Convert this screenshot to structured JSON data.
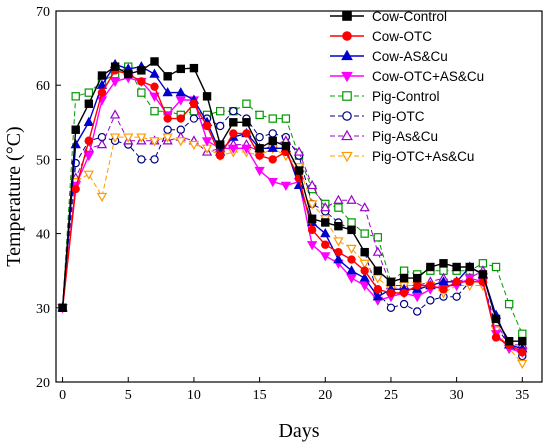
{
  "chart_data": {
    "type": "line",
    "xlabel": "Days",
    "ylabel": "Temperature (°C)",
    "xlim": [
      -0.5,
      36.5
    ],
    "ylim": [
      20,
      70
    ],
    "xticks": [
      0,
      5,
      10,
      15,
      20,
      25,
      30,
      35
    ],
    "yticks": [
      20,
      30,
      40,
      50,
      60,
      70
    ],
    "legend_position": "top-right",
    "x": [
      0,
      1,
      2,
      3,
      4,
      5,
      6,
      7,
      8,
      9,
      10,
      11,
      12,
      13,
      14,
      15,
      16,
      17,
      18,
      19,
      20,
      21,
      22,
      23,
      24,
      25,
      26,
      27,
      28,
      29,
      30,
      31,
      32,
      33,
      34,
      35
    ],
    "series": [
      {
        "name": "Cow-Control",
        "color": "#000000",
        "marker": "square",
        "filled": true,
        "dashed": false,
        "values": [
          30,
          54,
          57.5,
          61.3,
          62.5,
          61.5,
          62,
          63.2,
          61.2,
          62.2,
          62.3,
          58.5,
          52,
          55,
          55,
          51.5,
          52.5,
          51.8,
          48.5,
          42,
          41.5,
          41,
          40.5,
          37.5,
          35,
          33.5,
          34,
          34,
          35.5,
          36,
          35.5,
          35.5,
          34.5,
          28.5,
          25.5,
          25.5
        ]
      },
      {
        "name": "Cow-OTC",
        "color": "#ff0000",
        "marker": "circle",
        "filled": true,
        "dashed": false,
        "values": [
          30,
          46,
          52.5,
          59,
          62,
          61.5,
          60.5,
          59.8,
          55.5,
          55.5,
          57.5,
          54.5,
          50.5,
          53.5,
          53.5,
          50.5,
          50,
          51,
          47.5,
          40.5,
          38.5,
          37.5,
          36.5,
          35,
          32.5,
          32,
          32,
          33,
          33,
          32.5,
          33.5,
          33.5,
          33.5,
          26,
          25,
          24
        ]
      },
      {
        "name": "Cow-AS&Cu",
        "color": "#0000cc",
        "marker": "triangle-up",
        "filled": true,
        "dashed": false,
        "values": [
          30,
          52,
          55,
          60,
          62.8,
          62.2,
          62.5,
          61.5,
          59,
          59,
          58,
          55,
          51,
          53,
          53.5,
          51.5,
          51.5,
          51.5,
          46.5,
          41.5,
          40,
          36.5,
          35,
          34,
          31.5,
          32.5,
          32.5,
          32.5,
          33,
          33.5,
          33.5,
          35.5,
          34.5,
          29,
          25,
          24.5
        ]
      },
      {
        "name": "Cow-OTC+AS&Cu",
        "color": "#ff00ff",
        "marker": "triangle-down",
        "filled": true,
        "dashed": false,
        "values": [
          30,
          46.5,
          50.5,
          58,
          60.5,
          61,
          60.5,
          58.5,
          56,
          58,
          58,
          52.5,
          51.5,
          51.5,
          51.5,
          48.5,
          47,
          46.5,
          47,
          38.5,
          37,
          36,
          34,
          33,
          31,
          31.5,
          32,
          31.5,
          32.5,
          33,
          33,
          34,
          33.5,
          26.5,
          24.5,
          24
        ]
      },
      {
        "name": "Pig-Control",
        "color": "#009900",
        "marker": "square",
        "filled": false,
        "dashed": true,
        "values": [
          30,
          58.5,
          59,
          60.5,
          61.5,
          62.5,
          59,
          56.5,
          56.5,
          56,
          56.5,
          56,
          56.5,
          56.5,
          57.5,
          56,
          55.5,
          55.5,
          50.5,
          46,
          44,
          43.5,
          41.5,
          40,
          39.5,
          33.5,
          35,
          34.5,
          35,
          35,
          35,
          35,
          36,
          35.5,
          30.5,
          26.5
        ]
      },
      {
        "name": "Pig-OTC",
        "color": "#000080",
        "marker": "circle",
        "filled": false,
        "dashed": true,
        "values": [
          30,
          49.5,
          52.5,
          53,
          52.5,
          52,
          50,
          50,
          54,
          54,
          55.5,
          55.5,
          54.5,
          56.5,
          55.5,
          53,
          53.5,
          53,
          50.5,
          44,
          43,
          41.5,
          40.5,
          37.5,
          32,
          30,
          30.5,
          29.5,
          31,
          31.5,
          31.5,
          33.5,
          33.5,
          27.5,
          25,
          23.5
        ]
      },
      {
        "name": "Pig-As&Cu",
        "color": "#9900cc",
        "marker": "triangle-up",
        "filled": false,
        "dashed": true,
        "values": [
          30,
          47.5,
          51.5,
          52,
          56,
          52.5,
          52.5,
          52.5,
          52.5,
          53,
          52.5,
          51,
          51.5,
          52,
          52,
          51,
          52,
          52.5,
          51,
          46.5,
          43.5,
          44.5,
          44.5,
          43.5,
          37.5,
          33,
          33,
          33,
          33.5,
          34,
          33.5,
          34,
          35,
          28,
          25,
          25
        ]
      },
      {
        "name": "Pig-OTC+As&Cu",
        "color": "#ff9900",
        "marker": "triangle-down",
        "filled": false,
        "dashed": true,
        "values": [
          30,
          47,
          48,
          45,
          53,
          53,
          53,
          52.5,
          53,
          52.5,
          52,
          51.5,
          50.5,
          51,
          51,
          50.5,
          51.5,
          50.5,
          49,
          44,
          42,
          39,
          38,
          36,
          34,
          32.5,
          33,
          33,
          33,
          32,
          33,
          33,
          33,
          27,
          24.5,
          22.5
        ]
      }
    ]
  }
}
